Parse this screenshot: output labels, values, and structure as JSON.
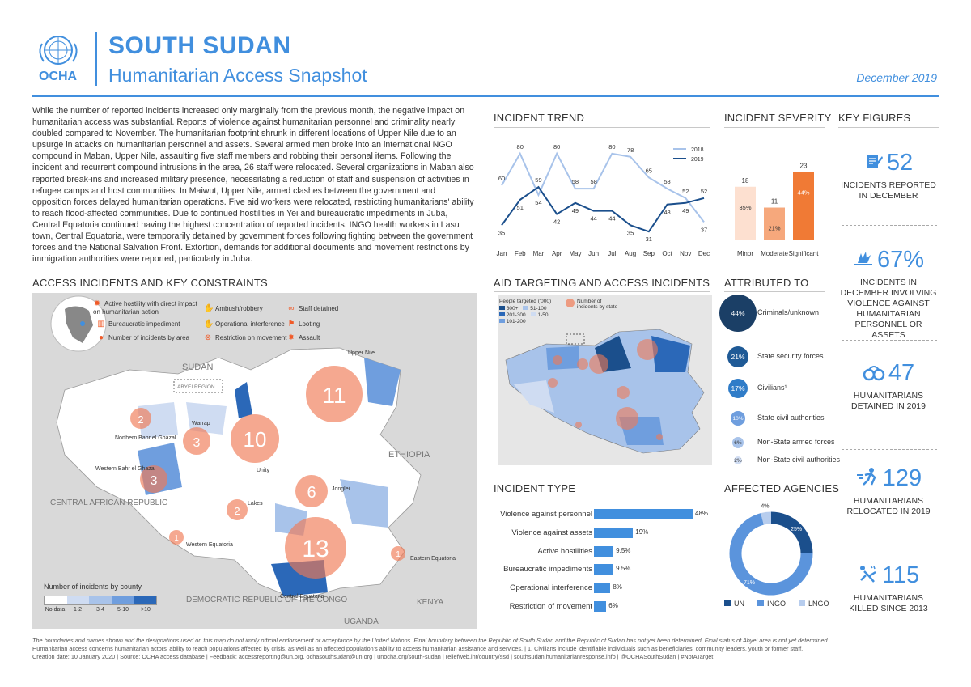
{
  "header": {
    "org": "OCHA",
    "title": "SOUTH SUDAN",
    "subtitle": "Humanitarian Access Snapshot",
    "date": "December 2019"
  },
  "intro": "While the number of reported incidents increased only marginally from the previous month, the negative impact on humanitarian access was substantial. Reports of violence against humanitarian personnel and criminality nearly doubled compared to November. The humanitarian footprint shrunk in different locations of Upper Nile due to an upsurge in attacks on humanitarian personnel and assets. Several armed men broke into an international NGO compound in Maban, Upper Nile, assaulting five staff members and robbing their personal items. Following the incident and recurrent compound intrusions in the area, 26 staff were relocated. Several organizations in Maban also reported break-ins and increased military presence, necessitating a reduction of staff and suspension of activities in refugee camps and host communities. In Maiwut, Upper Nile, armed clashes between the government and opposition forces delayed humanitarian operations. Five aid workers were relocated, restricting humanitarians' ability to reach flood-affected communities. Due to continued hostilities in Yei and bureaucratic impediments in Juba, Central Equatoria continued having the highest concentration of reported incidents. INGO health workers in Lasu town, Central Equatoria, were temporarily detained by government forces following fighting between the government forces and the National Salvation Front. Extortion, demands for additional documents and movement restrictions by immigration authorities were reported, particularly in Juba.",
  "sections": {
    "incident_trend": "INCIDENT TREND",
    "incident_severity": "INCIDENT SEVERITY",
    "key_figures": "KEY FIGURES",
    "access_map": "ACCESS INCIDENTS AND KEY CONSTRAINTS",
    "aid_targeting": "AID TARGETING AND ACCESS INCIDENTS",
    "attributed_to": "ATTRIBUTED TO",
    "incident_type": "INCIDENT TYPE",
    "affected_agencies": "AFFECTED AGENCIES"
  },
  "key_figures": [
    {
      "icon": "report-icon",
      "value": "52",
      "label": "INCIDENTS REPORTED IN DECEMBER"
    },
    {
      "icon": "violence-icon",
      "value": "67%",
      "label": "INCIDENTS IN DECEMBER INVOLVING VIOLENCE AGAINST HUMANITARIAN PERSONNEL OR ASSETS"
    },
    {
      "icon": "handcuffs-icon",
      "value": "47",
      "label": "HUMANITARIANS DETAINED IN 2019"
    },
    {
      "icon": "relocation-icon",
      "value": "129",
      "label": "HUMANITARIANS RELOCATED IN 2019"
    },
    {
      "icon": "killed-icon",
      "value": "115",
      "label": "HUMANITARIANS KILLED SINCE 2013"
    }
  ],
  "map_legend": {
    "active_hostility": "Active hostility with direct impact on humanitarian action",
    "ambush": "Ambush/robbery",
    "staff_detained": "Staff detained",
    "bureaucratic": "Bureaucratic impediment",
    "operational": "Operational interference",
    "looting": "Looting",
    "num_incidents": "Number of incidents by area",
    "restriction": "Restriction on movement",
    "assault": "Assault",
    "county_title": "Number of incidents by county",
    "county_scale": [
      "No data",
      "1-2",
      "3-4",
      "5-10",
      ">10"
    ],
    "county_colors": [
      "#ffffff",
      "#cfdcf2",
      "#a8c3ea",
      "#6f9ede",
      "#2b68b8"
    ]
  },
  "map_labels": {
    "sudan": "SUDAN",
    "abyei": "ABYEI REGION",
    "ethiopia": "ETHIOPIA",
    "car": "CENTRAL AFRICAN REPUBLIC",
    "drc": "DEMOCRATIC REPUBLIC OF THE CONGO",
    "uganda": "UGANDA",
    "kenya": "KENYA",
    "upper_nile": "Upper Nile",
    "warrap": "Warrap",
    "nbeg": "Northern Bahr el Ghazal",
    "wbeg": "Western Bahr el Ghazal",
    "unity": "Unity",
    "jonglei": "Jonglei",
    "lakes": "Lakes",
    "we": "Western Equatoria",
    "ce": "Central Equatoria",
    "ee": "Eastern Equatoria"
  },
  "map_bubbles": [
    {
      "label": "11"
    },
    {
      "label": "10"
    },
    {
      "label": "13"
    },
    {
      "label": "6"
    },
    {
      "label": "3"
    },
    {
      "label": "3"
    },
    {
      "label": "2"
    },
    {
      "label": "2"
    },
    {
      "label": "1"
    },
    {
      "label": "1"
    }
  ],
  "aid_legend": {
    "people_title": "People targeted ('000)",
    "ranges": [
      "300+",
      "51-100",
      "201-300",
      "1-50",
      "101-200"
    ],
    "bubble_label": "Number of incidents by state"
  },
  "attributed_to": [
    {
      "pct": "44%",
      "label": "Criminals/unknown",
      "color": "#1b3f66"
    },
    {
      "pct": "21%",
      "label": "State security forces",
      "color": "#1f5a96"
    },
    {
      "pct": "17%",
      "label": "Civilians¹",
      "color": "#2f7cc8"
    },
    {
      "pct": "10%",
      "label": "State civil authorities",
      "color": "#6f9ede"
    },
    {
      "pct": "6%",
      "label": "Non-State armed forces",
      "color": "#a8c3ea"
    },
    {
      "pct": "2%",
      "label": "Non-State civil authorities",
      "color": "#cfdcf2"
    }
  ],
  "incident_types": [
    {
      "label": "Violence against personnel",
      "value": 48,
      "text": "48%"
    },
    {
      "label": "Violence against assets",
      "value": 19,
      "text": "19%"
    },
    {
      "label": "Active hostilities",
      "value": 9.5,
      "text": "9.5%"
    },
    {
      "label": "Bureaucratic impediments",
      "value": 9.5,
      "text": "9.5%"
    },
    {
      "label": "Operational interference",
      "value": 8,
      "text": "8%"
    },
    {
      "label": "Restriction of movement",
      "value": 6,
      "text": "6%"
    }
  ],
  "affected_agencies": {
    "segments": [
      {
        "name": "UN",
        "value": 25,
        "text": "25%",
        "color": "#1b4f8c"
      },
      {
        "name": "INGO",
        "value": 71,
        "text": "71%",
        "color": "#5b94dc"
      },
      {
        "name": "LNGO",
        "value": 4,
        "text": "4%",
        "color": "#b7cdee"
      }
    ]
  },
  "chart_data": [
    {
      "type": "line",
      "title": "INCIDENT TREND",
      "categories": [
        "Jan",
        "Feb",
        "Mar",
        "Apr",
        "May",
        "Jun",
        "Jul",
        "Aug",
        "Sep",
        "Oct",
        "Nov",
        "Dec"
      ],
      "series": [
        {
          "name": "2018",
          "color": "#a8c3ea",
          "values": [
            60,
            80,
            54,
            80,
            58,
            58,
            80,
            78,
            65,
            58,
            52,
            37
          ]
        },
        {
          "name": "2019",
          "color": "#1b4f8c",
          "values": [
            35,
            51,
            59,
            42,
            49,
            44,
            44,
            35,
            31,
            48,
            49,
            52
          ]
        }
      ],
      "ylim": [
        25,
        85
      ]
    },
    {
      "type": "bar",
      "title": "INCIDENT SEVERITY",
      "categories": [
        "Minor",
        "Moderate",
        "Significant"
      ],
      "values": [
        18,
        11,
        23
      ],
      "percent_labels": [
        "35%",
        "21%",
        "44%"
      ],
      "colors": [
        "#fde0d0",
        "#f6a87c",
        "#f07a35"
      ],
      "ylim": [
        0,
        25
      ]
    }
  ],
  "footer": {
    "line1": "The boundaries and names shown and the designations used on this map do not imply official endorsement or acceptance by the United Nations.  Final boundary between the Republic of South Sudan and the Republic of Sudan has not yet been determined. Final status of Abyei area is not yet determined.",
    "line2": "Humanitarian access concerns humanitarian actors' ability to reach populations affected by crisis, as well as an affected population's ability to access humanitarian assistance and services.   |   1. Civilians include identifiable individuals such as beneficiaries, community leaders, youth or former staff.",
    "line3": "Creation date: 10 January 2020   |   Source: OCHA access database   |   Feedback: accessreporting@un.org,  ochasouthsudan@un.org   |   unocha.org/south-sudan   |   reliefweb.int/country/ssd   |   southsudan.humanitarianresponse.info   |   @OCHASouthSudan   |   #NotATarget"
  }
}
